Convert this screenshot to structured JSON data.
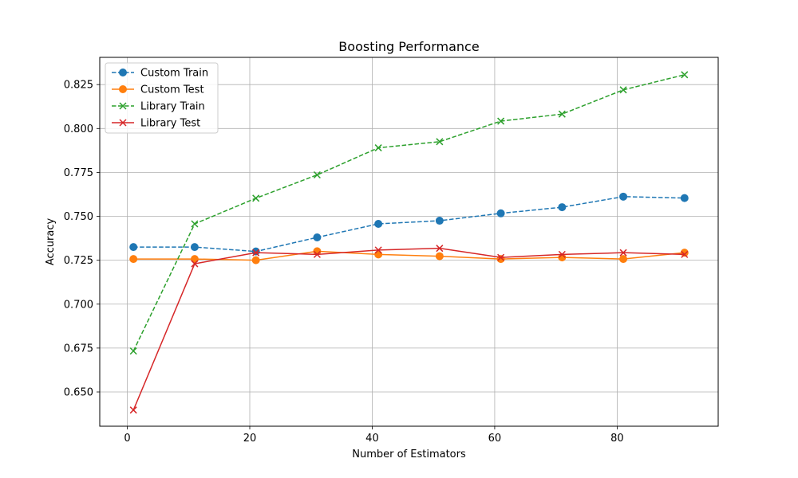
{
  "chart_data": {
    "type": "line",
    "title": "Boosting Performance",
    "xlabel": "Number of Estimators",
    "ylabel": "Accuracy",
    "xlim": [
      -4.5,
      96.5
    ],
    "ylim": [
      0.6305,
      0.8405
    ],
    "xticks": [
      0,
      20,
      40,
      60,
      80
    ],
    "xtick_labels": [
      "0",
      "20",
      "40",
      "60",
      "80"
    ],
    "yticks": [
      0.65,
      0.675,
      0.7,
      0.725,
      0.75,
      0.775,
      0.8,
      0.825
    ],
    "ytick_labels": [
      "0.650",
      "0.675",
      "0.700",
      "0.725",
      "0.750",
      "0.775",
      "0.800",
      "0.825"
    ],
    "grid": true,
    "legend_position": "top-left",
    "x": [
      1,
      11,
      21,
      31,
      41,
      51,
      61,
      71,
      81,
      91
    ],
    "series": [
      {
        "name": "Custom Train",
        "color": "#1f77b4",
        "linestyle": "dashed",
        "marker": "circle",
        "values": [
          0.7325,
          0.7325,
          0.73,
          0.738,
          0.7457,
          0.7475,
          0.7517,
          0.7552,
          0.7612,
          0.7604
        ]
      },
      {
        "name": "Custom Test",
        "color": "#ff7f0e",
        "linestyle": "solid",
        "marker": "circle",
        "values": [
          0.7257,
          0.7257,
          0.725,
          0.7301,
          0.7283,
          0.7273,
          0.7257,
          0.7266,
          0.7257,
          0.7293
        ]
      },
      {
        "name": "Library Train",
        "color": "#2ca02c",
        "linestyle": "dashed",
        "marker": "x",
        "values": [
          0.6733,
          0.7457,
          0.7603,
          0.7736,
          0.789,
          0.7925,
          0.8042,
          0.8082,
          0.822,
          0.8306
        ]
      },
      {
        "name": "Library Test",
        "color": "#d62728",
        "linestyle": "solid",
        "marker": "x",
        "values": [
          0.6397,
          0.723,
          0.7293,
          0.7283,
          0.7308,
          0.7318,
          0.7266,
          0.7283,
          0.7293,
          0.7283
        ]
      }
    ]
  }
}
